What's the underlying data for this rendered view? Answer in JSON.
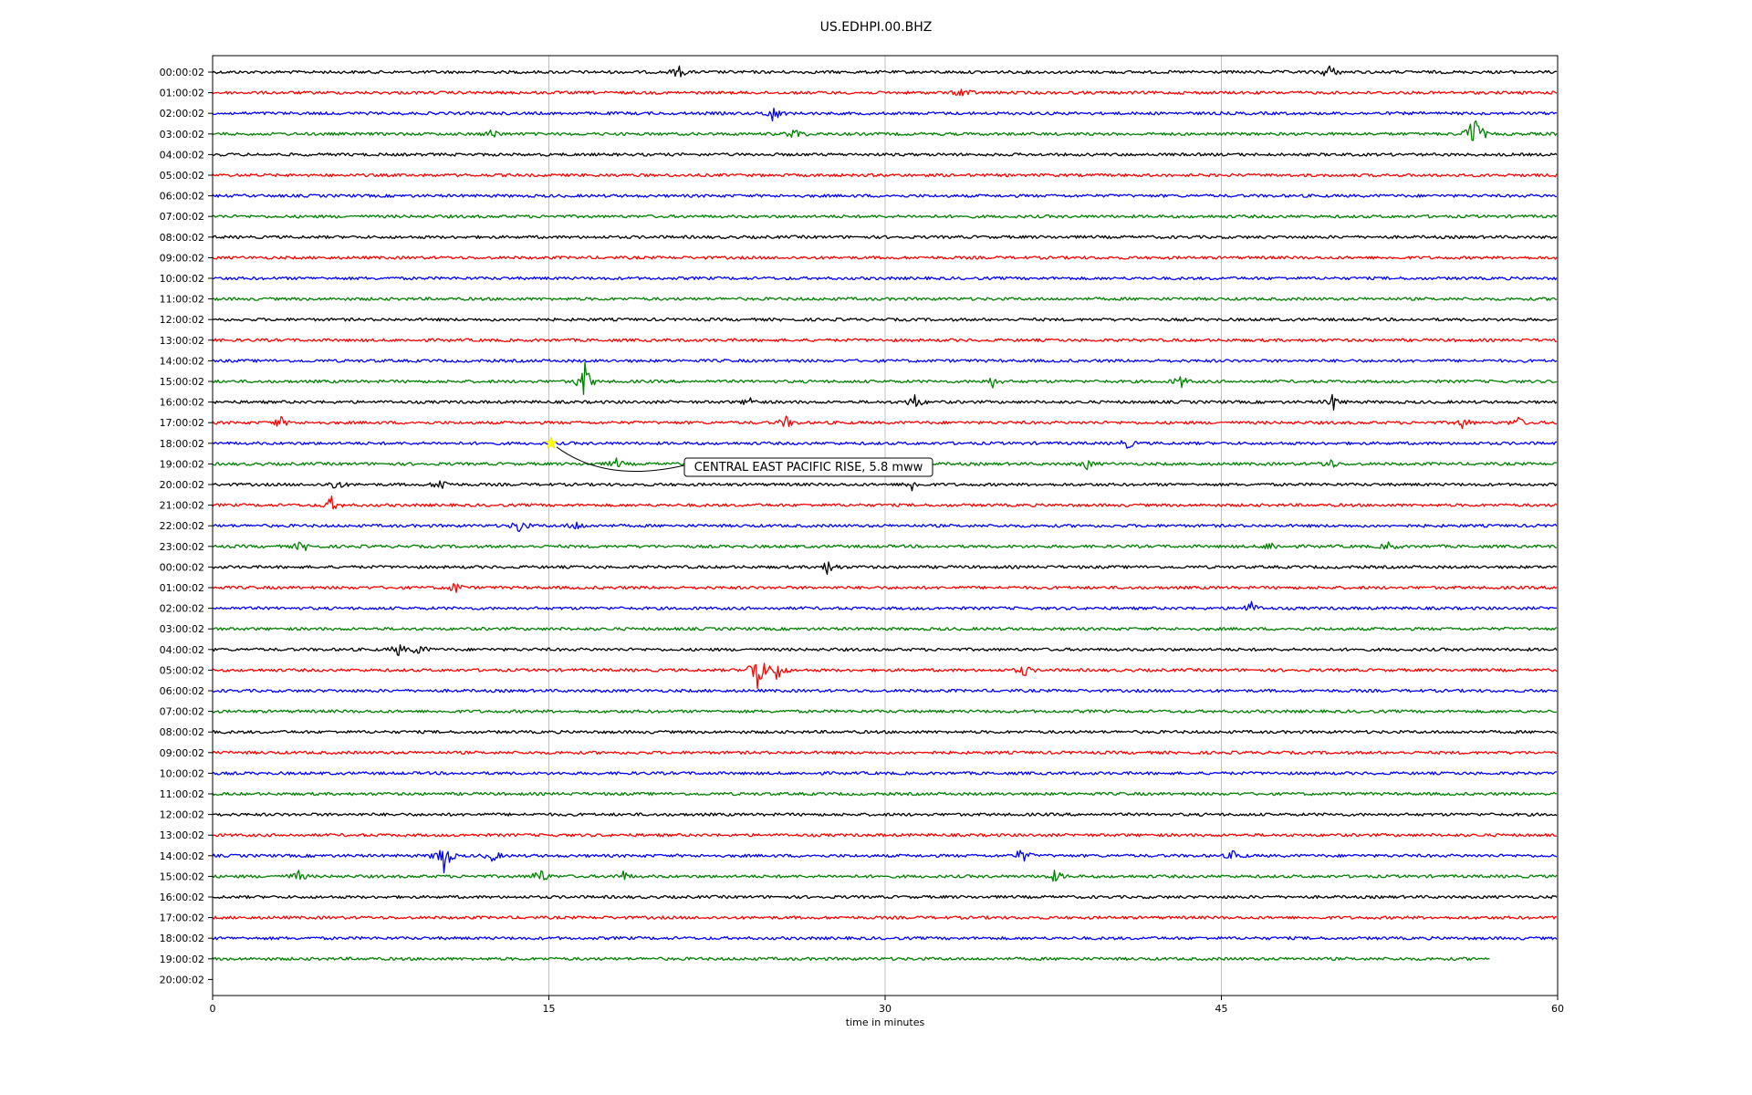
{
  "chart_data": {
    "type": "line",
    "title": "US.EDHPI.00.BHZ",
    "xlabel": "time in minutes",
    "ylabel": "",
    "xlim": [
      0,
      60
    ],
    "x_ticks": [
      "0",
      "15",
      "30",
      "45",
      "60"
    ],
    "grid": "vertical",
    "row_labels": [
      "00:00:02",
      "01:00:02",
      "02:00:02",
      "03:00:02",
      "04:00:02",
      "05:00:02",
      "06:00:02",
      "07:00:02",
      "08:00:02",
      "09:00:02",
      "10:00:02",
      "11:00:02",
      "12:00:02",
      "13:00:02",
      "14:00:02",
      "15:00:02",
      "16:00:02",
      "17:00:02",
      "18:00:02",
      "19:00:02",
      "20:00:02",
      "21:00:02",
      "22:00:02",
      "23:00:02",
      "00:00:02",
      "01:00:02",
      "02:00:02",
      "03:00:02",
      "04:00:02",
      "05:00:02",
      "06:00:02",
      "07:00:02",
      "08:00:02",
      "09:00:02",
      "10:00:02",
      "11:00:02",
      "12:00:02",
      "13:00:02",
      "14:00:02",
      "15:00:02",
      "16:00:02",
      "17:00:02",
      "18:00:02",
      "19:00:02",
      "20:00:02"
    ],
    "trace_colors": [
      "#000000",
      "#ff0000",
      "#0000ff",
      "#008000"
    ],
    "trace_count": 44,
    "last_trace_end_minute": 57.0,
    "bursts": [
      {
        "row": 0,
        "minute": 20.8,
        "amp": 0.6
      },
      {
        "row": 0,
        "minute": 49.8,
        "amp": 0.8
      },
      {
        "row": 1,
        "minute": 33.5,
        "amp": 0.6
      },
      {
        "row": 2,
        "minute": 25.0,
        "amp": 0.9
      },
      {
        "row": 3,
        "minute": 12.5,
        "amp": 0.5
      },
      {
        "row": 3,
        "minute": 26.0,
        "amp": 0.6
      },
      {
        "row": 3,
        "minute": 56.3,
        "amp": 2.5
      },
      {
        "row": 15,
        "minute": 16.6,
        "amp": 2.0
      },
      {
        "row": 15,
        "minute": 34.8,
        "amp": 0.5
      },
      {
        "row": 15,
        "minute": 43.2,
        "amp": 0.6
      },
      {
        "row": 16,
        "minute": 24.0,
        "amp": 0.5
      },
      {
        "row": 16,
        "minute": 31.3,
        "amp": 0.8
      },
      {
        "row": 16,
        "minute": 50.0,
        "amp": 0.8
      },
      {
        "row": 17,
        "minute": 3.0,
        "amp": 0.6
      },
      {
        "row": 17,
        "minute": 25.6,
        "amp": 0.6
      },
      {
        "row": 17,
        "minute": 55.8,
        "amp": 0.6
      },
      {
        "row": 17,
        "minute": 58.2,
        "amp": 0.6
      },
      {
        "row": 18,
        "minute": 40.8,
        "amp": 0.5
      },
      {
        "row": 19,
        "minute": 18.0,
        "amp": 0.5
      },
      {
        "row": 19,
        "minute": 39.0,
        "amp": 0.5
      },
      {
        "row": 19,
        "minute": 49.8,
        "amp": 0.6
      },
      {
        "row": 20,
        "minute": 5.5,
        "amp": 0.6
      },
      {
        "row": 20,
        "minute": 10.2,
        "amp": 0.7
      },
      {
        "row": 20,
        "minute": 31.2,
        "amp": 0.6
      },
      {
        "row": 21,
        "minute": 5.3,
        "amp": 0.8
      },
      {
        "row": 22,
        "minute": 13.7,
        "amp": 0.8
      },
      {
        "row": 22,
        "minute": 16.2,
        "amp": 0.5
      },
      {
        "row": 23,
        "minute": 4.0,
        "amp": 0.6
      },
      {
        "row": 23,
        "minute": 47.2,
        "amp": 0.5
      },
      {
        "row": 23,
        "minute": 52.5,
        "amp": 0.5
      },
      {
        "row": 24,
        "minute": 27.5,
        "amp": 0.9
      },
      {
        "row": 25,
        "minute": 10.8,
        "amp": 0.6
      },
      {
        "row": 26,
        "minute": 46.3,
        "amp": 0.7
      },
      {
        "row": 28,
        "minute": 8.3,
        "amp": 0.6
      },
      {
        "row": 28,
        "minute": 9.2,
        "amp": 0.6
      },
      {
        "row": 29,
        "minute": 24.3,
        "amp": 2.5
      },
      {
        "row": 29,
        "minute": 25.2,
        "amp": 1.1
      },
      {
        "row": 29,
        "minute": 36.2,
        "amp": 0.6
      },
      {
        "row": 38,
        "minute": 10.3,
        "amp": 2.0
      },
      {
        "row": 38,
        "minute": 12.5,
        "amp": 0.6
      },
      {
        "row": 38,
        "minute": 36.1,
        "amp": 0.8
      },
      {
        "row": 38,
        "minute": 45.6,
        "amp": 0.6
      },
      {
        "row": 39,
        "minute": 3.8,
        "amp": 0.6
      },
      {
        "row": 39,
        "minute": 14.6,
        "amp": 0.9
      },
      {
        "row": 39,
        "minute": 18.3,
        "amp": 0.5
      },
      {
        "row": 39,
        "minute": 37.6,
        "amp": 0.6
      }
    ],
    "annotations": [
      {
        "text": "CENTRAL EAST PACIFIC RISE, 5.8 mww",
        "row": 18,
        "minute": 15.1
      }
    ]
  }
}
